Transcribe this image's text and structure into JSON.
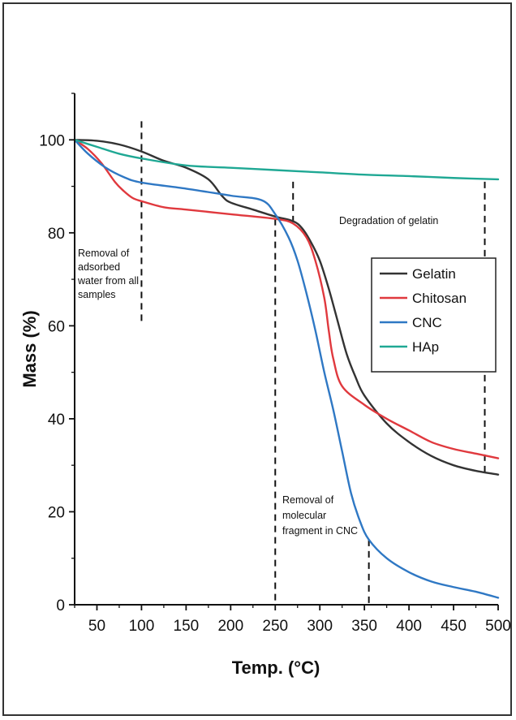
{
  "chart_data": {
    "type": "line",
    "title": "",
    "xlabel": "Temp. (°C)",
    "ylabel": "Mass (%)",
    "xlim": [
      25,
      500
    ],
    "ylim": [
      0,
      110
    ],
    "xticks": [
      50,
      100,
      150,
      200,
      250,
      300,
      350,
      400,
      450,
      500
    ],
    "yticks": [
      0,
      20,
      40,
      60,
      80,
      100
    ],
    "grid": false,
    "legend_position": "right",
    "series": [
      {
        "name": "Gelatin",
        "color": "#333333",
        "points": [
          [
            25,
            100
          ],
          [
            50,
            99.8
          ],
          [
            75,
            99
          ],
          [
            100,
            97.5
          ],
          [
            125,
            95.5
          ],
          [
            150,
            94
          ],
          [
            175,
            91.5
          ],
          [
            190,
            88
          ],
          [
            200,
            86.5
          ],
          [
            225,
            85
          ],
          [
            250,
            83.5
          ],
          [
            270,
            82.5
          ],
          [
            280,
            81
          ],
          [
            290,
            78
          ],
          [
            300,
            74
          ],
          [
            310,
            68
          ],
          [
            320,
            61
          ],
          [
            330,
            54
          ],
          [
            340,
            49
          ],
          [
            350,
            45
          ],
          [
            375,
            39
          ],
          [
            400,
            35
          ],
          [
            425,
            32
          ],
          [
            450,
            30
          ],
          [
            475,
            28.8
          ],
          [
            500,
            28
          ]
        ]
      },
      {
        "name": "Chitosan",
        "color": "#e0393e",
        "points": [
          [
            25,
            100
          ],
          [
            40,
            98
          ],
          [
            55,
            95
          ],
          [
            70,
            91
          ],
          [
            80,
            89
          ],
          [
            90,
            87.5
          ],
          [
            100,
            86.8
          ],
          [
            125,
            85.5
          ],
          [
            150,
            85
          ],
          [
            200,
            84
          ],
          [
            250,
            83
          ],
          [
            270,
            82
          ],
          [
            285,
            79
          ],
          [
            295,
            74
          ],
          [
            305,
            66
          ],
          [
            310,
            59
          ],
          [
            315,
            53
          ],
          [
            325,
            47
          ],
          [
            350,
            43
          ],
          [
            375,
            40
          ],
          [
            400,
            37.5
          ],
          [
            425,
            35
          ],
          [
            450,
            33.5
          ],
          [
            475,
            32.5
          ],
          [
            500,
            31.5
          ]
        ]
      },
      {
        "name": "CNC",
        "color": "#2f78c4",
        "points": [
          [
            25,
            100
          ],
          [
            40,
            97
          ],
          [
            60,
            94
          ],
          [
            80,
            92
          ],
          [
            100,
            90.8
          ],
          [
            150,
            89.5
          ],
          [
            200,
            88
          ],
          [
            235,
            87
          ],
          [
            250,
            84
          ],
          [
            265,
            79
          ],
          [
            275,
            74
          ],
          [
            285,
            67
          ],
          [
            295,
            59
          ],
          [
            305,
            50
          ],
          [
            315,
            42
          ],
          [
            325,
            33
          ],
          [
            335,
            24
          ],
          [
            345,
            18
          ],
          [
            355,
            14
          ],
          [
            375,
            10
          ],
          [
            400,
            7
          ],
          [
            425,
            5
          ],
          [
            450,
            3.8
          ],
          [
            475,
            2.8
          ],
          [
            500,
            1.5
          ]
        ]
      },
      {
        "name": "HAp",
        "color": "#1fa894",
        "points": [
          [
            25,
            100
          ],
          [
            50,
            98.5
          ],
          [
            75,
            97
          ],
          [
            100,
            96
          ],
          [
            150,
            94.5
          ],
          [
            200,
            94
          ],
          [
            250,
            93.5
          ],
          [
            300,
            93
          ],
          [
            350,
            92.5
          ],
          [
            400,
            92.2
          ],
          [
            450,
            91.8
          ],
          [
            500,
            91.5
          ]
        ]
      }
    ],
    "vlines": [
      100,
      250,
      270,
      355,
      485
    ],
    "annotations": [
      {
        "text": "Removal of\nadsorbed\nwater from all\nsamples"
      },
      {
        "text": "Degradation of gelatin"
      },
      {
        "text": "Removal of\nmolecular\nfragment in CNC"
      }
    ]
  }
}
